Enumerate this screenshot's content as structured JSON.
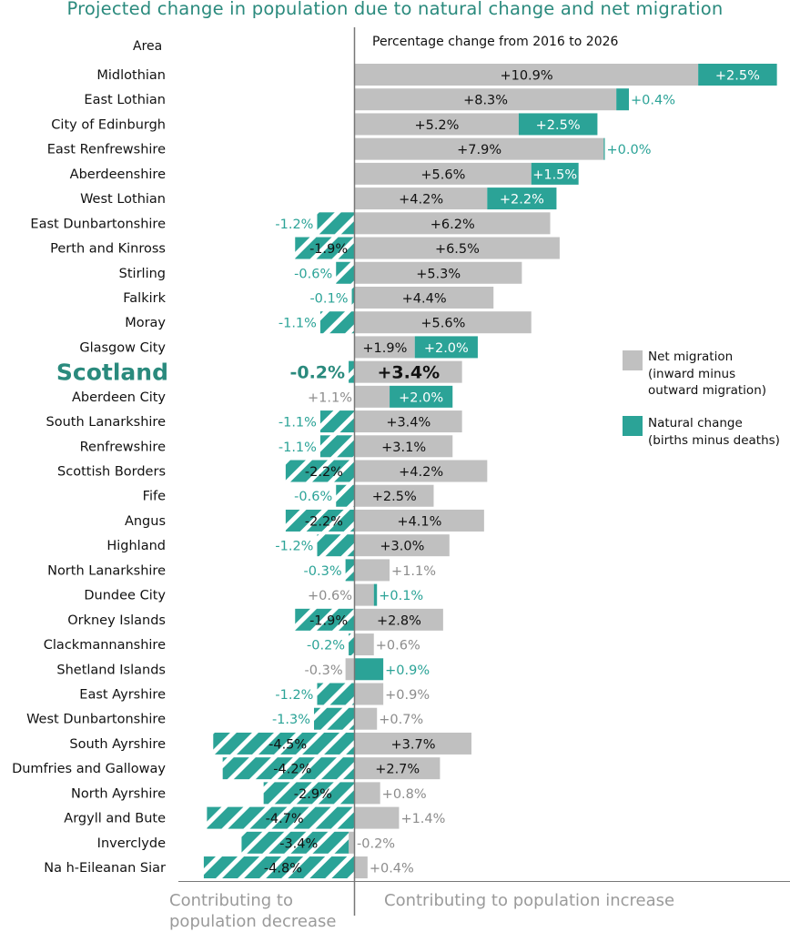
{
  "chart_data": {
    "type": "bar",
    "title": "Projected change in population due to natural change and net migration",
    "category_header": "Area",
    "value_header": "Percentage change from 2016 to 2026",
    "stacked": true,
    "orientation": "horizontal",
    "highlight": "Scotland",
    "series": [
      {
        "key": "migration",
        "name": "Net migration",
        "name_line2": "(inward minus",
        "name_line3": "outward migration)",
        "color": "#c0c0c0"
      },
      {
        "key": "natural",
        "name": "Natural change",
        "name_line2": "(births minus deaths)",
        "color": "#2ba397"
      }
    ],
    "legend_position": "right",
    "bottom_labels": {
      "left_line1": "Contributing to",
      "left_line2": "population decrease",
      "right": "Contributing to population increase"
    },
    "rows": [
      {
        "area": "Midlothian",
        "migration": 10.9,
        "natural": 2.5
      },
      {
        "area": "East Lothian",
        "migration": 8.3,
        "natural": 0.4
      },
      {
        "area": "City of Edinburgh",
        "migration": 5.2,
        "natural": 2.5
      },
      {
        "area": "East Renfrewshire",
        "migration": 7.9,
        "natural": 0.0
      },
      {
        "area": "Aberdeenshire",
        "migration": 5.6,
        "natural": 1.5
      },
      {
        "area": "West Lothian",
        "migration": 4.2,
        "natural": 2.2
      },
      {
        "area": "East Dunbartonshire",
        "migration": 6.2,
        "natural": -1.2
      },
      {
        "area": "Perth and Kinross",
        "migration": 6.5,
        "natural": -1.9
      },
      {
        "area": "Stirling",
        "migration": 5.3,
        "natural": -0.6
      },
      {
        "area": "Falkirk",
        "migration": 4.4,
        "natural": -0.1
      },
      {
        "area": "Moray",
        "migration": 5.6,
        "natural": -1.1
      },
      {
        "area": "Glasgow City",
        "migration": 1.9,
        "natural": 2.0
      },
      {
        "area": "Scotland",
        "migration": 3.4,
        "natural": -0.2
      },
      {
        "area": "Aberdeen City",
        "migration": 1.1,
        "natural": 2.0
      },
      {
        "area": "South Lanarkshire",
        "migration": 3.4,
        "natural": -1.1
      },
      {
        "area": "Renfrewshire",
        "migration": 3.1,
        "natural": -1.1
      },
      {
        "area": "Scottish Borders",
        "migration": 4.2,
        "natural": -2.2
      },
      {
        "area": "Fife",
        "migration": 2.5,
        "natural": -0.6
      },
      {
        "area": "Angus",
        "migration": 4.1,
        "natural": -2.2
      },
      {
        "area": "Highland",
        "migration": 3.0,
        "natural": -1.2
      },
      {
        "area": "North Lanarkshire",
        "migration": 1.1,
        "natural": -0.3
      },
      {
        "area": "Dundee City",
        "migration": 0.6,
        "natural": 0.1
      },
      {
        "area": "Orkney Islands",
        "migration": 2.8,
        "natural": -1.9
      },
      {
        "area": "Clackmannanshire",
        "migration": 0.6,
        "natural": -0.2
      },
      {
        "area": "Shetland Islands",
        "migration": -0.3,
        "natural": 0.9
      },
      {
        "area": "East Ayrshire",
        "migration": 0.9,
        "natural": -1.2
      },
      {
        "area": "West Dunbartonshire",
        "migration": 0.7,
        "natural": -1.3
      },
      {
        "area": "South Ayrshire",
        "migration": 3.7,
        "natural": -4.5
      },
      {
        "area": "Dumfries and Galloway",
        "migration": 2.7,
        "natural": -4.2
      },
      {
        "area": "North Ayrshire",
        "migration": 0.8,
        "natural": -2.9
      },
      {
        "area": "Argyll and Bute",
        "migration": 1.4,
        "natural": -4.7
      },
      {
        "area": "Inverclyde",
        "migration": -0.2,
        "natural": -3.4
      },
      {
        "area": "Na h-Eileanan Siar",
        "migration": 0.4,
        "natural": -4.8
      }
    ]
  }
}
